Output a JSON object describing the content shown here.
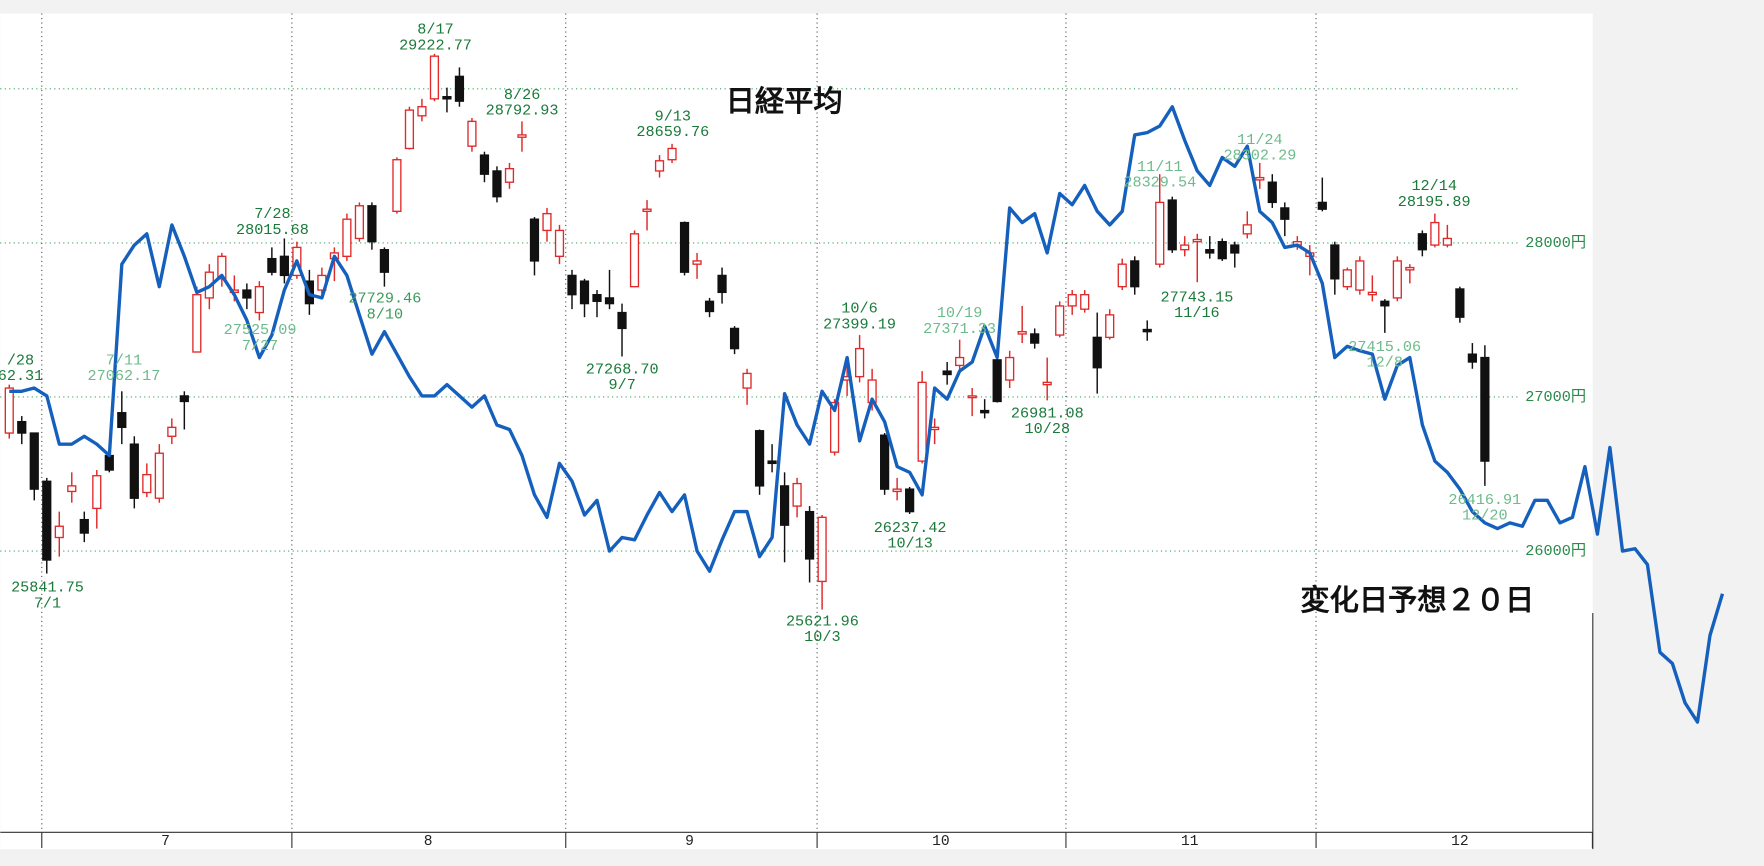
{
  "chart_data": {
    "type": "candlestick",
    "title": "日経平均",
    "annotation": "変化日予想２０日",
    "up_color": "#e02a2a",
    "down_color": "#111111",
    "grid_color": "#3aa060",
    "xlim": [
      -0.72,
      140.3
    ],
    "ylim": [
      24175,
      29489
    ],
    "yticks": [
      {
        "value": 26000,
        "label": "26000円"
      },
      {
        "value": 27000,
        "label": "27000円"
      },
      {
        "value": 28000,
        "label": "28000円"
      }
    ],
    "ygrid": [
      26000,
      27000,
      28000,
      29000
    ],
    "xticks": [
      {
        "value": 12.5,
        "label": "7"
      },
      {
        "value": 33.5,
        "label": "8"
      },
      {
        "value": 54.4,
        "label": "9"
      },
      {
        "value": 74.5,
        "label": "10"
      },
      {
        "value": 94.4,
        "label": "11"
      },
      {
        "value": 116,
        "label": "12"
      }
    ],
    "month_lines": [
      2.6,
      22.6,
      44.5,
      64.6,
      84.5,
      104.5,
      126.6
    ],
    "ohlc": [
      [
        26766,
        27080,
        26730,
        27058
      ],
      [
        26840,
        26876,
        26694,
        26766
      ],
      [
        26766,
        26766,
        26329,
        26402
      ],
      [
        26453,
        26475,
        25854,
        25942
      ],
      [
        26088,
        26256,
        25964,
        26161
      ],
      [
        26387,
        26511,
        26314,
        26423
      ],
      [
        26204,
        26256,
        26058,
        26117
      ],
      [
        26277,
        26526,
        26146,
        26489
      ],
      [
        26620,
        26694,
        26511,
        26526
      ],
      [
        26898,
        27037,
        26694,
        26803
      ],
      [
        26694,
        26745,
        26277,
        26343
      ],
      [
        26380,
        26569,
        26350,
        26496
      ],
      [
        26343,
        26694,
        26314,
        26635
      ],
      [
        26745,
        26861,
        26694,
        26803
      ],
      [
        27007,
        27037,
        26789,
        26971
      ],
      [
        27292,
        27716,
        27292,
        27664
      ],
      [
        27643,
        27862,
        27570,
        27810
      ],
      [
        27767,
        27935,
        27716,
        27913
      ],
      [
        27679,
        27789,
        27621,
        27694
      ],
      [
        27694,
        27737,
        27570,
        27643
      ],
      [
        27548,
        27752,
        27497,
        27716
      ],
      [
        27898,
        27971,
        27789,
        27810
      ],
      [
        27913,
        28029,
        27737,
        27789
      ],
      [
        27789,
        28008,
        27767,
        27971
      ],
      [
        27752,
        27825,
        27533,
        27606
      ],
      [
        27694,
        27840,
        27643,
        27789
      ],
      [
        27898,
        27971,
        27752,
        27935
      ],
      [
        27913,
        28190,
        27883,
        28154
      ],
      [
        28029,
        28263,
        28008,
        28241
      ],
      [
        28241,
        28263,
        27956,
        28008
      ],
      [
        27956,
        27971,
        27716,
        27810
      ],
      [
        28205,
        28555,
        28190,
        28540
      ],
      [
        28613,
        28884,
        28606,
        28862
      ],
      [
        28825,
        28935,
        28789,
        28884
      ],
      [
        28935,
        29227,
        28920,
        29212
      ],
      [
        28949,
        29008,
        28847,
        28935
      ],
      [
        29081,
        29139,
        28884,
        28920
      ],
      [
        28628,
        28811,
        28592,
        28789
      ],
      [
        28570,
        28592,
        28394,
        28446
      ],
      [
        28467,
        28497,
        28263,
        28300
      ],
      [
        28394,
        28519,
        28351,
        28482
      ],
      [
        28686,
        28789,
        28592,
        28701
      ],
      [
        28154,
        28168,
        27789,
        27883
      ],
      [
        28081,
        28227,
        28008,
        28190
      ],
      [
        27913,
        28117,
        27862,
        28081
      ],
      [
        27789,
        27825,
        27570,
        27664
      ],
      [
        27752,
        27767,
        27518,
        27606
      ],
      [
        27664,
        27694,
        27518,
        27621
      ],
      [
        27643,
        27825,
        27570,
        27606
      ],
      [
        27548,
        27606,
        27263,
        27445
      ],
      [
        27716,
        28081,
        27716,
        28059
      ],
      [
        28205,
        28278,
        28081,
        28219
      ],
      [
        28467,
        28570,
        28424,
        28533
      ],
      [
        28540,
        28643,
        28518,
        28613
      ],
      [
        28132,
        28139,
        27789,
        27810
      ],
      [
        27862,
        27935,
        27767,
        27883
      ],
      [
        27621,
        27643,
        27518,
        27555
      ],
      [
        27789,
        27840,
        27606,
        27679
      ],
      [
        27445,
        27460,
        27278,
        27314
      ],
      [
        27058,
        27183,
        26949,
        27153
      ],
      [
        26781,
        26789,
        26365,
        26423
      ],
      [
        26584,
        26694,
        26511,
        26569
      ],
      [
        26423,
        26511,
        25927,
        26168
      ],
      [
        26292,
        26475,
        26219,
        26438
      ],
      [
        26256,
        26292,
        25796,
        25949
      ],
      [
        25803,
        26234,
        25620,
        26219
      ],
      [
        26642,
        26986,
        26620,
        26964
      ],
      [
        27110,
        27256,
        27007,
        27132
      ],
      [
        27132,
        27402,
        27095,
        27314
      ],
      [
        26964,
        27183,
        26912,
        27110
      ],
      [
        26752,
        26766,
        26365,
        26402
      ],
      [
        26387,
        26475,
        26329,
        26402
      ],
      [
        26402,
        26416,
        26241,
        26256
      ],
      [
        26584,
        27168,
        26569,
        27095
      ],
      [
        26789,
        26861,
        26694,
        26803
      ],
      [
        27168,
        27227,
        27080,
        27146
      ],
      [
        27205,
        27372,
        27153,
        27256
      ],
      [
        27000,
        27058,
        26876,
        27007
      ],
      [
        26912,
        26986,
        26861,
        26898
      ],
      [
        27241,
        27256,
        26964,
        26971
      ],
      [
        27110,
        27300,
        27058,
        27256
      ],
      [
        27409,
        27591,
        27350,
        27424
      ],
      [
        27409,
        27445,
        27314,
        27350
      ],
      [
        27080,
        27256,
        26978,
        27095
      ],
      [
        27402,
        27621,
        27387,
        27591
      ],
      [
        27591,
        27694,
        27533,
        27664
      ],
      [
        27570,
        27694,
        27548,
        27664
      ],
      [
        27387,
        27548,
        27022,
        27190
      ],
      [
        27387,
        27570,
        27373,
        27533
      ],
      [
        27716,
        27898,
        27694,
        27862
      ],
      [
        27883,
        27913,
        27664,
        27716
      ],
      [
        27438,
        27497,
        27365,
        27424
      ],
      [
        27862,
        28446,
        27840,
        28263
      ],
      [
        28278,
        28300,
        27935,
        27956
      ],
      [
        27956,
        28044,
        27913,
        27986
      ],
      [
        28008,
        28059,
        27745,
        28022
      ],
      [
        27956,
        28044,
        27898,
        27935
      ],
      [
        28008,
        28029,
        27883,
        27898
      ],
      [
        27986,
        28008,
        27840,
        27935
      ],
      [
        28059,
        28205,
        28029,
        28117
      ],
      [
        28409,
        28519,
        28351,
        28424
      ],
      [
        28394,
        28446,
        28227,
        28263
      ],
      [
        28227,
        28263,
        28044,
        28154
      ],
      [
        27986,
        28044,
        27956,
        28008
      ],
      [
        27913,
        27986,
        27789,
        27935
      ],
      [
        28263,
        28424,
        28205,
        28219
      ],
      [
        27986,
        28008,
        27664,
        27767
      ],
      [
        27716,
        27840,
        27694,
        27825
      ],
      [
        27694,
        27913,
        27664,
        27883
      ],
      [
        27664,
        27789,
        27621,
        27679
      ],
      [
        27621,
        27635,
        27416,
        27592
      ],
      [
        27643,
        27913,
        27621,
        27883
      ],
      [
        27825,
        27862,
        27737,
        27840
      ],
      [
        28059,
        28081,
        27913,
        27956
      ],
      [
        27986,
        28190,
        27971,
        28132
      ],
      [
        27986,
        28117,
        27971,
        28029
      ],
      [
        27701,
        27716,
        27482,
        27518
      ],
      [
        27278,
        27350,
        27183,
        27227
      ],
      [
        27256,
        27336,
        26423,
        26584
      ]
    ],
    "forecast": {
      "color": "#1560bd",
      "values": [
        27037,
        27037,
        27058,
        27007,
        26694,
        26694,
        26745,
        26694,
        26620,
        27862,
        27986,
        28059,
        27716,
        28117,
        27913,
        27679,
        27716,
        27789,
        27664,
        27497,
        27256,
        27402,
        27694,
        27883,
        27664,
        27643,
        27913,
        27789,
        27533,
        27278,
        27424,
        27278,
        27132,
        27007,
        27007,
        27080,
        27007,
        26934,
        27007,
        26818,
        26789,
        26620,
        26365,
        26219,
        26569,
        26453,
        26234,
        26329,
        26000,
        26088,
        26073,
        26234,
        26380,
        26256,
        26365,
        26000,
        25869,
        26073,
        26256,
        26256,
        25964,
        26088,
        27022,
        26818,
        26694,
        27037,
        26912,
        27256,
        26715,
        26986,
        26840,
        26548,
        26511,
        26365,
        27058,
        26986,
        27168,
        27227,
        27460,
        27256,
        28227,
        28132,
        28190,
        27935,
        28321,
        28248,
        28373,
        28205,
        28117,
        28205,
        28701,
        28716,
        28759,
        28884,
        28665,
        28467,
        28373,
        28555,
        28497,
        28628,
        28205,
        28132,
        27971,
        27986,
        27935,
        27737,
        27256,
        27329,
        27300,
        27278,
        26986,
        27205,
        27256,
        26818,
        26584,
        26511,
        26402,
        26256,
        26183,
        26146,
        26183,
        26161,
        26329,
        26329,
        26183,
        26219,
        26548,
        26110,
        26672,
        26000,
        26015,
        25912,
        25343,
        25270,
        25015,
        24890,
        25453,
        25723
      ]
    },
    "peak_labels": [
      {
        "lines": [
          "/28",
          "62.31"
        ],
        "color": "#1a7a3a"
      },
      {
        "lines": [
          "25841.75",
          "7/1"
        ],
        "color": "#1a7a3a"
      },
      {
        "lines": [
          "7/11",
          "27062.17"
        ],
        "color": "#6dbb8c"
      },
      {
        "lines": [
          "7/28",
          "28015.68"
        ],
        "color": "#1a7a3a"
      },
      {
        "lines": [
          "27525.09",
          "7/27"
        ],
        "color": "#6dbb8c"
      },
      {
        "lines": [
          "27729.46",
          "8/10"
        ],
        "color": "#3a9a5a"
      },
      {
        "lines": [
          "8/17",
          "29222.77"
        ],
        "color": "#1a7a3a"
      },
      {
        "lines": [
          "8/26",
          "28792.93"
        ],
        "color": "#1a7a3a"
      },
      {
        "lines": [
          "9/13",
          "28659.76"
        ],
        "color": "#1a7a3a"
      },
      {
        "lines": [
          "27268.70",
          "9/7"
        ],
        "color": "#1a7a3a"
      },
      {
        "lines": [
          "10/6",
          "27399.19"
        ],
        "color": "#1a7a3a"
      },
      {
        "lines": [
          "25621.96",
          "10/3"
        ],
        "color": "#1a7a3a"
      },
      {
        "lines": [
          "26237.42",
          "10/13"
        ],
        "color": "#1a7a3a"
      },
      {
        "lines": [
          "10/19",
          "27371.33"
        ],
        "color": "#6dbb8c"
      },
      {
        "lines": [
          "26981.08",
          "10/28"
        ],
        "color": "#1a7a3a"
      },
      {
        "lines": [
          "11/11",
          "28329.54"
        ],
        "color": "#6dbb8c"
      },
      {
        "lines": [
          "27743.15",
          "11/16"
        ],
        "color": "#1a7a3a"
      },
      {
        "lines": [
          "11/24",
          "28302.29"
        ],
        "color": "#6dbb8c"
      },
      {
        "lines": [
          "27415.06",
          "12/8"
        ],
        "color": "#6dbb8c"
      },
      {
        "lines": [
          "12/14",
          "28195.89"
        ],
        "color": "#1a7a3a"
      },
      {
        "lines": [
          "26416.91",
          "12/20"
        ],
        "color": "#6dbb8c"
      }
    ]
  }
}
